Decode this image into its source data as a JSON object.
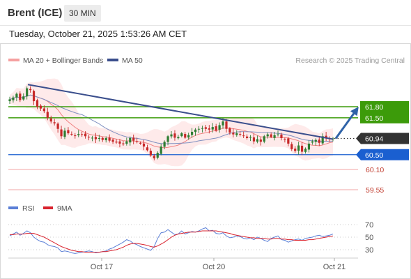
{
  "header": {
    "instrument": "Brent (ICE)",
    "interval": "30 MIN",
    "datetime": "Tuesday, October 21, 2025 1:53:26 AM CET"
  },
  "legend": {
    "ma": "MA 20 + Bollinger Bands",
    "ma50": "MA 50",
    "source": "Research © 2025 Trading Central",
    "rsi": "RSI",
    "rsi_ma": "9MA"
  },
  "colors": {
    "up": "#2e7d32",
    "down": "#c62828",
    "ma20": "#f08080",
    "ma50": "#3a4e8c",
    "green_level": "#3c9b0a",
    "blue_level": "#1a5fd0",
    "red_level": "#c0392b",
    "price_box": "#333333",
    "rsi": "#5b7fd6",
    "rsi_ma": "#d9232e"
  },
  "chart_data": [
    {
      "type": "candlestick",
      "title": "Brent (ICE) 30 MIN",
      "x_labels": [
        "Oct 17",
        "Oct 20",
        "Oct 21"
      ],
      "price_levels": [
        {
          "value": 61.8,
          "label": "61.80",
          "style": "green"
        },
        {
          "value": 61.5,
          "label": "61.50",
          "style": "green"
        },
        {
          "value": 60.94,
          "label": "60.94",
          "style": "current"
        },
        {
          "value": 60.5,
          "label": "60.50",
          "style": "blue"
        },
        {
          "value": 60.1,
          "label": "60.10",
          "style": "red"
        },
        {
          "value": 59.55,
          "label": "59.55",
          "style": "red"
        }
      ],
      "trendline": {
        "from": 62.4,
        "to": 60.92
      },
      "forecast_arrow": {
        "from": 60.94,
        "to": 61.8
      },
      "close_path": [
        62.0,
        62.05,
        62.15,
        61.98,
        62.08,
        62.3,
        62.25,
        61.95,
        61.8,
        61.75,
        61.68,
        61.5,
        61.4,
        61.35,
        61.2,
        61.0,
        61.15,
        61.08,
        61.05,
        61.02,
        61.06,
        61.05,
        61.0,
        60.98,
        60.96,
        60.92,
        60.95,
        60.9,
        60.95,
        60.88,
        60.85,
        60.83,
        60.8,
        60.78,
        60.86,
        60.95,
        60.88,
        60.85,
        60.8,
        60.72,
        60.62,
        60.48,
        60.4,
        60.55,
        60.72,
        60.85,
        61.0,
        61.05,
        60.96,
        60.98,
        61.08,
        60.96,
        61.03,
        61.12,
        61.18,
        61.2,
        61.22,
        61.2,
        61.18,
        61.25,
        61.15,
        61.3,
        61.4,
        61.2,
        61.1,
        61.05,
        61.08,
        61.05,
        61.02,
        60.95,
        60.98,
        60.86,
        60.92,
        60.85,
        61.0,
        61.05,
        60.98,
        61.03,
        61.05,
        60.95,
        60.92,
        60.8,
        60.65,
        60.6,
        60.75,
        60.58,
        60.66,
        60.8,
        60.86,
        60.9,
        60.82,
        61.0,
        60.95,
        60.92,
        60.94
      ],
      "xlabel": "",
      "ylabel": ""
    },
    {
      "type": "line",
      "title": "RSI",
      "y_ticks": [
        70,
        50,
        30
      ],
      "ylim": [
        20,
        80
      ],
      "series": [
        {
          "name": "RSI",
          "values": [
            52,
            55,
            58,
            53,
            56,
            60,
            57,
            50,
            46,
            43,
            42,
            38,
            36,
            35,
            33,
            27,
            28,
            27,
            25,
            24,
            25,
            26,
            27,
            28,
            27,
            25,
            26,
            27,
            28,
            31,
            33,
            36,
            39,
            42,
            46,
            44,
            40,
            38,
            35,
            33,
            31,
            29,
            35,
            48,
            57,
            58,
            62,
            58,
            54,
            55,
            60,
            55,
            57,
            59,
            58,
            60,
            63,
            65,
            60,
            61,
            56,
            55,
            57,
            52,
            49,
            50,
            52,
            51,
            48,
            47,
            49,
            46,
            50,
            48,
            45,
            43,
            48,
            50,
            52,
            46,
            45,
            42,
            44,
            46,
            47,
            45,
            48,
            49,
            50,
            52,
            53,
            51,
            52,
            53,
            55
          ]
        },
        {
          "name": "9MA",
          "values": [
            54,
            54,
            55,
            55,
            55,
            56,
            56,
            56,
            54,
            52,
            50,
            47,
            44,
            41,
            38,
            35,
            33,
            31,
            29,
            28,
            27,
            27,
            26,
            26,
            26,
            26,
            26,
            27,
            27,
            28,
            29,
            30,
            32,
            34,
            37,
            39,
            40,
            40,
            39,
            38,
            37,
            35,
            34,
            36,
            39,
            42,
            46,
            50,
            53,
            55,
            56,
            57,
            58,
            58,
            58,
            59,
            60,
            60,
            60,
            60,
            60,
            59,
            58,
            57,
            56,
            54,
            53,
            52,
            51,
            50,
            49,
            49,
            48,
            48,
            48,
            47,
            47,
            48,
            48,
            47,
            47,
            46,
            46,
            45,
            45,
            45,
            45,
            46,
            46,
            47,
            48,
            49,
            50,
            51,
            52
          ]
        }
      ]
    }
  ]
}
